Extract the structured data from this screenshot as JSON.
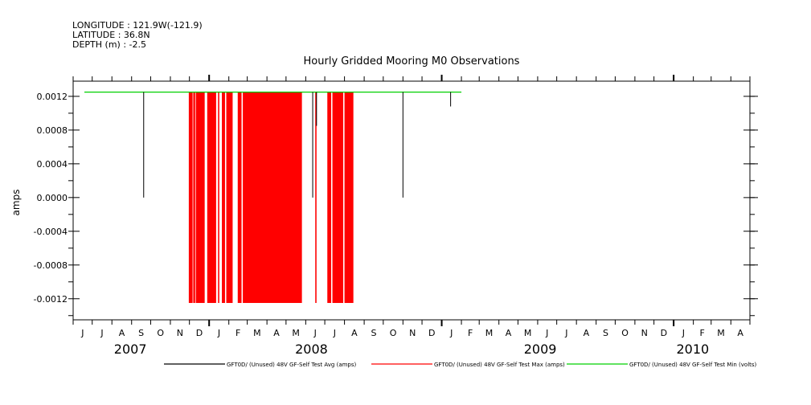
{
  "chart_data": {
    "type": "line",
    "header_lines": [
      "LONGITUDE : 121.9W(-121.9)",
      "LATITUDE : 36.8N",
      "DEPTH (m) : -2.5"
    ],
    "title": "Hourly Gridded Mooring M0 Observations",
    "ylabel": "amps",
    "xlabel": "",
    "ylim": [
      -0.00145,
      0.00138
    ],
    "yticks": [
      -0.0012,
      -0.0008,
      -0.0004,
      0.0,
      0.0004,
      0.0008,
      0.0012
    ],
    "ytick_labels": [
      "-0.0012",
      "-0.0008",
      "-0.0004",
      "0.0000",
      "0.0004",
      "0.0008",
      "0.0012"
    ],
    "xlim": [
      "2007-06-01",
      "2010-05-01"
    ],
    "month_labels": [
      "J",
      "J",
      "A",
      "S",
      "O",
      "N",
      "D",
      "J",
      "F",
      "M",
      "A",
      "M",
      "J",
      "J",
      "A",
      "S",
      "O",
      "N",
      "D",
      "J",
      "F",
      "M",
      "A",
      "M",
      "J",
      "J",
      "A",
      "S",
      "O",
      "N",
      "D",
      "J",
      "F",
      "M",
      "A"
    ],
    "year_labels": [
      {
        "label": "2007",
        "month_index": 3
      },
      {
        "label": "2008",
        "month_index": 12.5
      },
      {
        "label": "2009",
        "month_index": 24.5
      },
      {
        "label": "2010",
        "month_index": 32.5
      }
    ],
    "grid": false,
    "legend_position": "bottom",
    "series": [
      {
        "name": "GFT0D/ (Unused) 48V GF-Self Test Avg (amps)",
        "color": "#000000",
        "baseline": 0.00125,
        "spikes": [
          {
            "x": "2007-09-20",
            "y": 0.0
          },
          {
            "x": "2008-06-12",
            "y": 0.0
          },
          {
            "x": "2008-06-18",
            "y": 0.00085
          },
          {
            "x": "2008-11-01",
            "y": 0.0
          },
          {
            "x": "2009-01-15",
            "y": 0.00108
          }
        ]
      },
      {
        "name": "GFT0D/ (Unused) 48V GF-Self Test Max (amps)",
        "color": "#ff0000",
        "baseline": 0.00125,
        "low": -0.00125,
        "blocks": [
          [
            "2007-11-30",
            "2007-12-06"
          ],
          [
            "2007-12-07",
            "2007-12-10"
          ],
          [
            "2007-12-11",
            "2007-12-25"
          ],
          [
            "2007-12-29",
            "2008-01-12"
          ],
          [
            "2008-01-15",
            "2008-01-17"
          ],
          [
            "2008-01-21",
            "2008-01-26"
          ],
          [
            "2008-01-28",
            "2008-02-07"
          ],
          [
            "2008-02-15",
            "2008-02-21"
          ],
          [
            "2008-02-23",
            "2008-05-26"
          ],
          [
            "2008-06-16",
            "2008-06-18"
          ],
          [
            "2008-07-05",
            "2008-07-11"
          ],
          [
            "2008-07-13",
            "2008-07-30"
          ],
          [
            "2008-08-01",
            "2008-08-15"
          ]
        ]
      },
      {
        "name": "GFT0D/ (Unused) 48V GF-Self Test Min (volts)",
        "color": "#00d000",
        "y": 0.00125,
        "x_range": [
          "2007-06-01",
          "2009-02-01"
        ]
      }
    ]
  }
}
